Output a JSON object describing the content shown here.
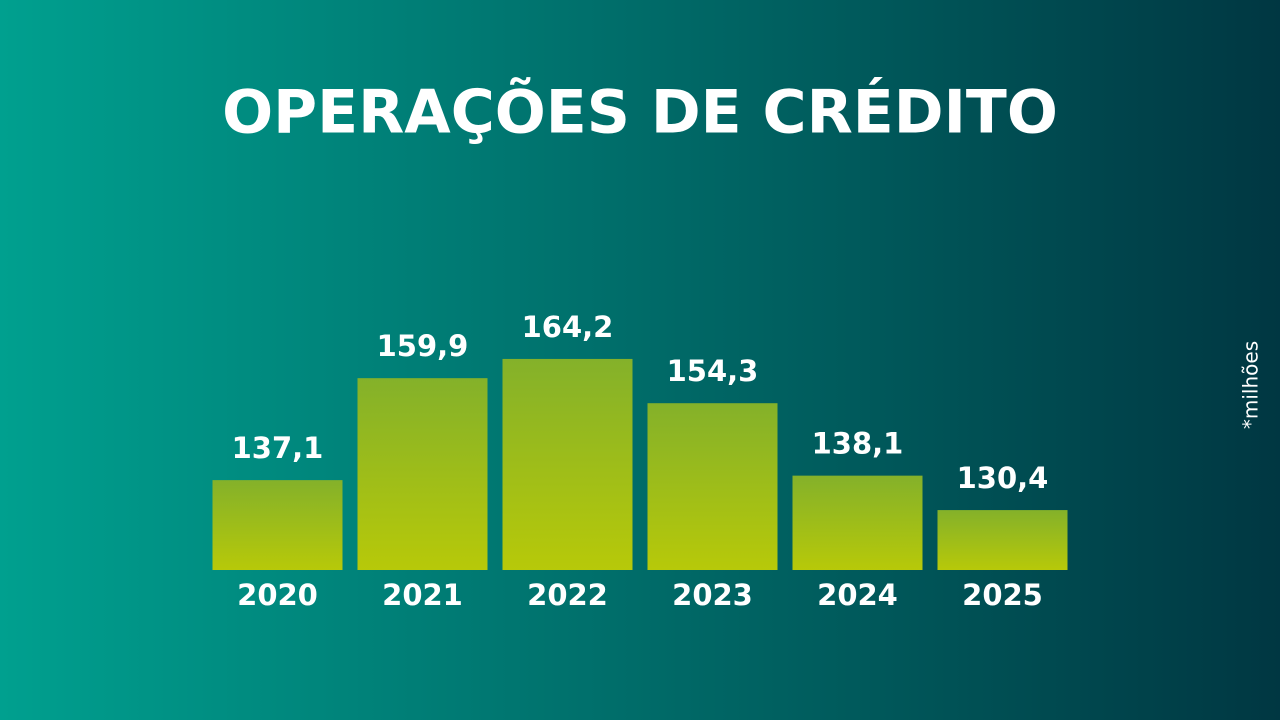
{
  "chart_data": {
    "type": "bar",
    "title": "OPERAÇÕES DE CRÉDITO",
    "unit_note": "*milhões",
    "categories": [
      "2020",
      "2021",
      "2022",
      "2023",
      "2024",
      "2025"
    ],
    "values": [
      137.1,
      159.9,
      164.2,
      154.3,
      138.1,
      130.4
    ],
    "value_labels": [
      "137,1",
      "159,9",
      "164,2",
      "154,3",
      "138,1",
      "130,4"
    ],
    "color": "#8db526",
    "ylim": [
      117,
      170
    ]
  }
}
